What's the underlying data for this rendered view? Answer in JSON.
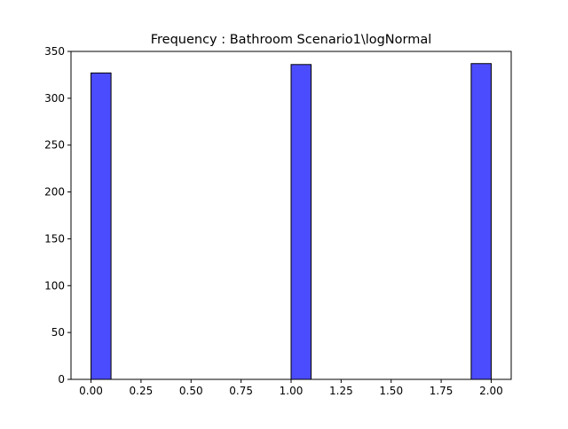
{
  "chart_data": {
    "type": "bar",
    "title": "Frequency : Bathroom Scenario1\\logNormal",
    "xlabel": "",
    "ylabel": "",
    "bins": [
      {
        "x_start": 0.0,
        "x_end": 0.1,
        "value": 327
      },
      {
        "x_start": 1.0,
        "x_end": 1.1,
        "value": 336
      },
      {
        "x_start": 1.9,
        "x_end": 2.0,
        "value": 337
      }
    ],
    "xlim": [
      -0.1,
      2.1
    ],
    "ylim": [
      0,
      350
    ],
    "x_ticks": [
      "0.00",
      "0.25",
      "0.50",
      "0.75",
      "1.00",
      "1.25",
      "1.50",
      "1.75",
      "2.00"
    ],
    "x_tick_values": [
      0.0,
      0.25,
      0.5,
      0.75,
      1.0,
      1.25,
      1.5,
      1.75,
      2.0
    ],
    "y_ticks": [
      "0",
      "50",
      "100",
      "150",
      "200",
      "250",
      "300",
      "350"
    ],
    "y_tick_values": [
      0,
      50,
      100,
      150,
      200,
      250,
      300,
      350
    ],
    "bar_color": "#0000ff",
    "bar_opacity": 0.7,
    "edge_color": "#000000",
    "grid": false,
    "legend": "none"
  }
}
